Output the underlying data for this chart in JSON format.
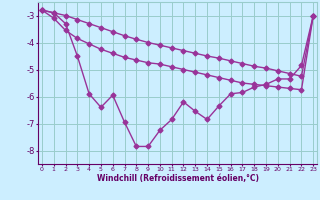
{
  "xlabel": "Windchill (Refroidissement éolien,°C)",
  "x_hours": [
    0,
    1,
    2,
    3,
    4,
    5,
    6,
    7,
    8,
    9,
    10,
    11,
    12,
    13,
    14,
    15,
    16,
    17,
    18,
    19,
    20,
    21,
    22,
    23
  ],
  "line1_y": [
    -2.8,
    -2.9,
    -3.3,
    -4.5,
    -5.9,
    -6.4,
    -5.95,
    -6.95,
    -7.85,
    -7.85,
    -7.25,
    -6.85,
    -6.2,
    -6.55,
    -6.85,
    -6.35,
    -5.9,
    -5.85,
    -5.65,
    -5.55,
    -5.35,
    -5.35,
    -4.85,
    -3.0
  ],
  "line2_y": [
    -2.8,
    -3.1,
    -3.55,
    -3.85,
    -4.05,
    -4.25,
    -4.4,
    -4.55,
    -4.65,
    -4.75,
    -4.8,
    -4.9,
    -5.0,
    -5.1,
    -5.2,
    -5.3,
    -5.4,
    -5.5,
    -5.55,
    -5.6,
    -5.65,
    -5.7,
    -5.75,
    -3.0
  ],
  "line3_y": [
    -2.8,
    -2.9,
    -3.0,
    -3.15,
    -3.3,
    -3.45,
    -3.6,
    -3.75,
    -3.88,
    -4.0,
    -4.1,
    -4.2,
    -4.3,
    -4.4,
    -4.5,
    -4.58,
    -4.68,
    -4.78,
    -4.88,
    -4.95,
    -5.05,
    -5.15,
    -5.25,
    -3.0
  ],
  "line_color": "#993399",
  "bg_color": "#cceeff",
  "grid_color": "#99cccc",
  "text_color": "#660066",
  "xlim": [
    -0.3,
    23.3
  ],
  "ylim": [
    -8.5,
    -2.5
  ],
  "yticks": [
    -8,
    -7,
    -6,
    -5,
    -4,
    -3
  ],
  "xticks": [
    0,
    1,
    2,
    3,
    4,
    5,
    6,
    7,
    8,
    9,
    10,
    11,
    12,
    13,
    14,
    15,
    16,
    17,
    18,
    19,
    20,
    21,
    22,
    23
  ],
  "marker": "D",
  "marker_size": 2.5,
  "line_width": 1.0
}
